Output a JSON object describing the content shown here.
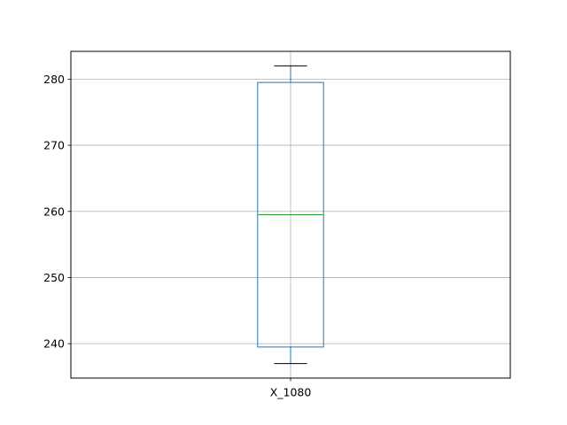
{
  "chart_data": {
    "type": "box",
    "title": "",
    "xlabel": "",
    "ylabel": "",
    "categories": [
      "X_1080"
    ],
    "boxes": [
      {
        "label": "X_1080",
        "whisker_low": 237,
        "q1": 239.5,
        "median": 259.5,
        "q3": 279.5,
        "whisker_high": 282
      }
    ],
    "ylim": [
      234.8,
      284.2
    ],
    "yticks": [
      240,
      250,
      260,
      270,
      280
    ],
    "grid": true,
    "colors": {
      "box": "#1f77b4",
      "median": "#2ca02c",
      "whisker": "#000000",
      "grid": "#b0b0b0"
    }
  }
}
